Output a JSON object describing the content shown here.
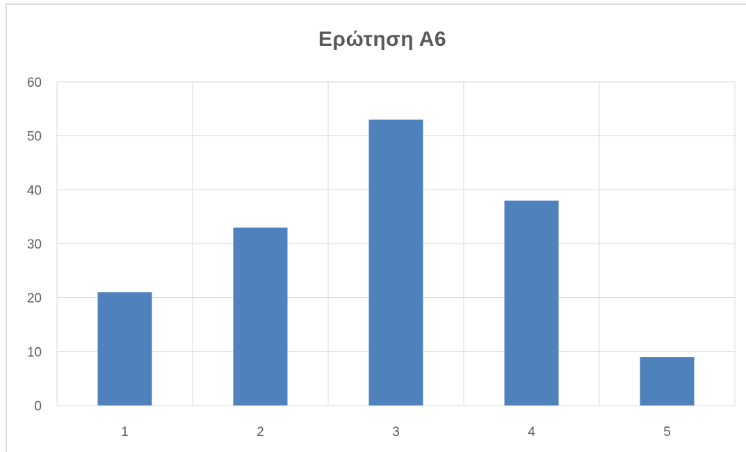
{
  "chart_data": {
    "type": "bar",
    "title": "Ερώτηση Α6",
    "xlabel": "",
    "ylabel": "",
    "categories": [
      "1",
      "2",
      "3",
      "4",
      "5"
    ],
    "values": [
      21,
      33,
      53,
      38,
      9
    ],
    "ylim": [
      0,
      60
    ],
    "yticks": [
      0,
      10,
      20,
      30,
      40,
      50,
      60
    ],
    "grid": true,
    "legend": "none",
    "bar_color": "#4f81bd",
    "grid_color": "#d9d9d9"
  }
}
